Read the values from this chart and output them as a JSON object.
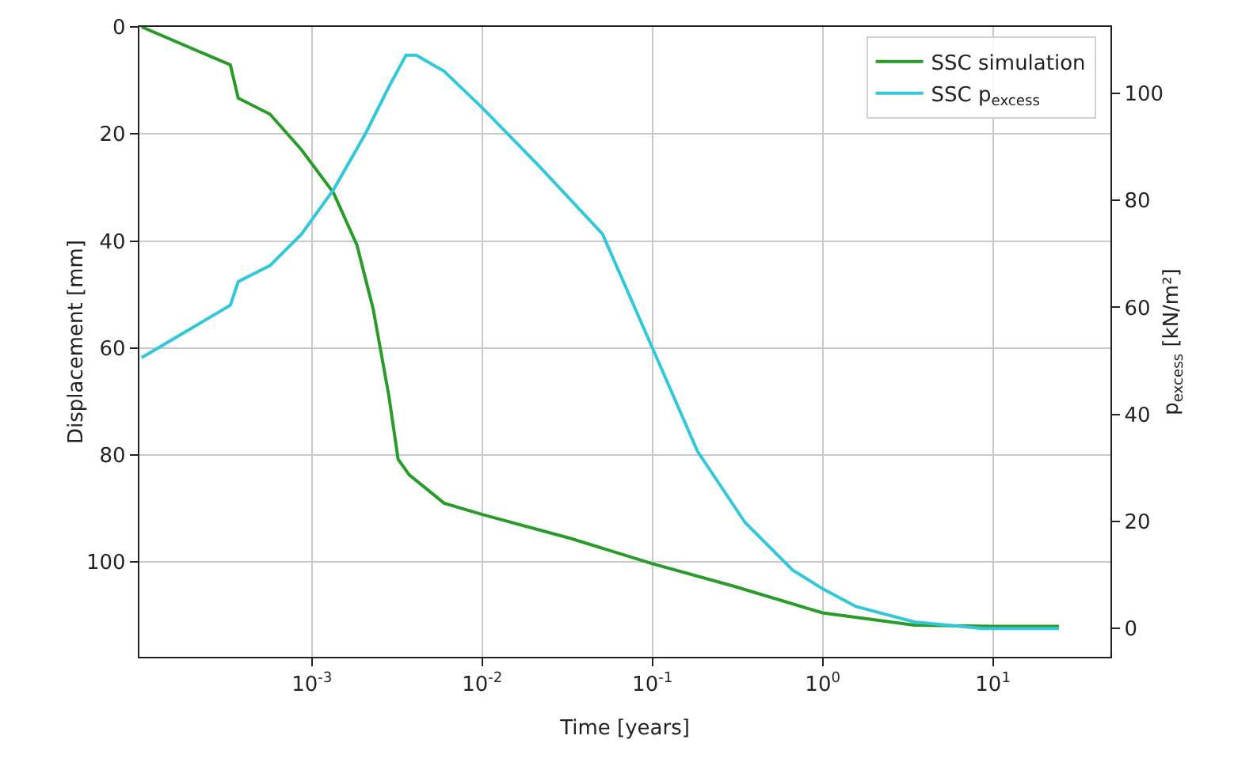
{
  "chart_data": {
    "type": "line",
    "xlabel": "Time [years]",
    "ylabel": "Displacement [mm]",
    "y2label": "p$_{excess}$ [kN/m²]",
    "log": "x",
    "grid": true,
    "legend": "top right",
    "line_style": "solid",
    "marker": "none",
    "xlim": [
      9.7e-05,
      49
    ],
    "xticks": [
      {
        "value": 0.001,
        "label": "10$^{-3}$"
      },
      {
        "value": 0.01,
        "label": "10$^{-2}$"
      },
      {
        "value": 0.1,
        "label": "10$^{-1}$"
      },
      {
        "value": 1,
        "label": "10$^{0}$"
      },
      {
        "value": 10,
        "label": "10$^{1}$"
      }
    ],
    "ylim": [
      117.7,
      0
    ],
    "yticks": [
      0,
      20,
      40,
      60,
      80,
      100
    ],
    "y2lim": [
      -5.3,
      112.4
    ],
    "y2ticks": [
      0,
      20,
      40,
      60,
      80,
      100
    ],
    "series": [
      {
        "name": "SSC simulation",
        "color": "#2a9a2a",
        "x": [
          0.0001,
          0.000332,
          0.000369,
          0.000567,
          0.00087,
          0.00134,
          0.00184,
          0.00229,
          0.00283,
          0.00321,
          0.00373,
          0.00598,
          0.01,
          0.0332,
          0.1,
          0.3,
          1,
          3.46,
          10,
          24.4
        ],
        "values": [
          0,
          7.1,
          13.3,
          16.3,
          23,
          31,
          40.8,
          52.7,
          68.9,
          80.8,
          83.7,
          89,
          91.1,
          95.6,
          100.3,
          104.5,
          109.5,
          111.8,
          112,
          112
        ]
      },
      {
        "name": "SSC p$_{excess}$",
        "color": "#33c7d9",
        "axis": "y2",
        "x": [
          0.0001,
          0.000332,
          0.000369,
          0.000567,
          0.00087,
          0.00134,
          0.00205,
          0.00283,
          0.00357,
          0.0041,
          0.00598,
          0.01,
          0.0216,
          0.0509,
          0.1,
          0.184,
          0.35,
          0.666,
          1,
          1.57,
          3.46,
          8.7,
          24.4
        ],
        "values": [
          50.6,
          60.4,
          64.8,
          67.8,
          73.7,
          82,
          92.3,
          101.2,
          107.1,
          107.1,
          104.1,
          97.3,
          86.4,
          73.7,
          52.4,
          33.1,
          19.8,
          10.9,
          7.4,
          4.1,
          1.2,
          0,
          0
        ]
      }
    ]
  }
}
